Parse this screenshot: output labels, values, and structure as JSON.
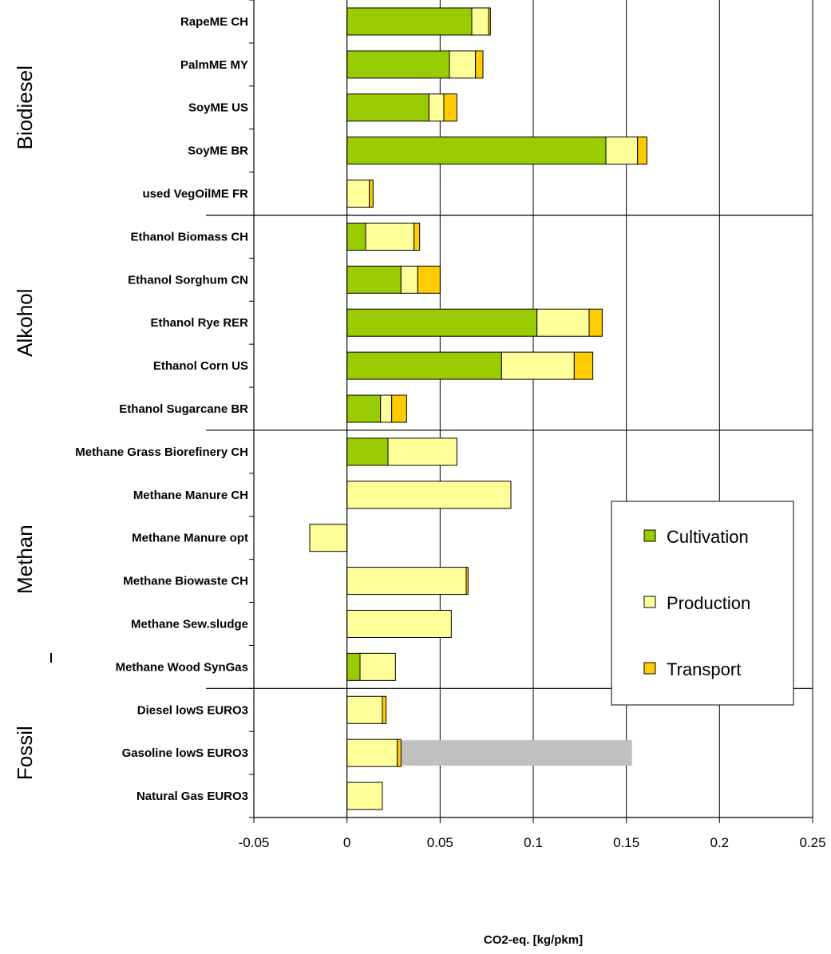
{
  "chart_data": {
    "type": "bar",
    "orientation": "horizontal",
    "stacked": true,
    "xlabel": "CO2-eq. [kg/pkm]",
    "xlim": [
      -0.05,
      0.25
    ],
    "xticks": [
      "-0.05",
      "0",
      "0.05",
      "0.1",
      "0.15",
      "0.2",
      "0.25"
    ],
    "xtick_values": [
      -0.05,
      0,
      0.05,
      0.1,
      0.15,
      0.2,
      0.25
    ],
    "grid": "vertical",
    "legend_position": "right",
    "groups": [
      {
        "label": "Biodiesel",
        "first": 0,
        "last": 4
      },
      {
        "label": "Alkohol",
        "first": 5,
        "last": 9
      },
      {
        "label": "Methan",
        "first": 10,
        "last": 15
      },
      {
        "label": "Fossil",
        "first": 16,
        "last": 18
      }
    ],
    "categories": [
      "RapeME CH",
      "PalmME MY",
      "SoyME US",
      "SoyME BR",
      "used VegOilME FR",
      "Ethanol Biomass CH",
      "Ethanol Sorghum CN",
      "Ethanol Rye RER",
      "Ethanol Corn US",
      "Ethanol Sugarcane BR",
      "Methane Grass Biorefinery CH",
      "Methane Manure CH",
      "Methane Manure opt",
      "Methane Biowaste CH",
      "Methane Sew.sludge",
      "Methane Wood SynGas",
      "Diesel lowS EURO3",
      "Gasoline lowS EURO3",
      "Natural Gas EURO3"
    ],
    "series": [
      {
        "name": "Cultivation",
        "color": "#99cc00",
        "values": [
          0.067,
          0.055,
          0.044,
          0.139,
          0,
          0.01,
          0.029,
          0.102,
          0.083,
          0.018,
          0.022,
          0,
          0,
          0,
          0,
          0.007,
          0,
          0,
          0
        ]
      },
      {
        "name": "Production",
        "color": "#ffff99",
        "values": [
          0.009,
          0.014,
          0.008,
          0.017,
          0.012,
          0.026,
          0.009,
          0.028,
          0.039,
          0.006,
          0.037,
          0.088,
          -0.02,
          0.064,
          0.056,
          0.019,
          0.019,
          0.027,
          0.019
        ]
      },
      {
        "name": "Transport",
        "color": "#ffcc00",
        "values": [
          0.001,
          0.004,
          0.007,
          0.005,
          0.002,
          0.003,
          0.012,
          0.007,
          0.01,
          0.008,
          0,
          0,
          0,
          0.001,
          0,
          0,
          0.002,
          0.002,
          0
        ]
      }
    ],
    "extra_bar": {
      "category": "Gasoline lowS EURO3",
      "start": 0.029,
      "end": 0.153,
      "color": "#c0c0c0"
    }
  }
}
